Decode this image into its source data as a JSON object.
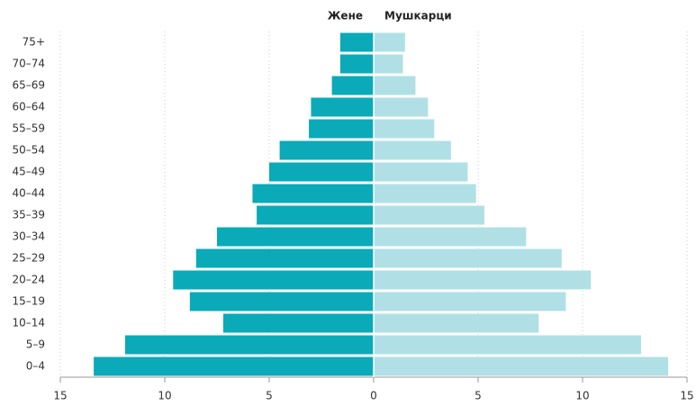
{
  "chart_data": {
    "type": "pyramid",
    "categories": [
      "75+",
      "70–74",
      "65–69",
      "60–64",
      "55–59",
      "50–54",
      "45–49",
      "40–44",
      "35–39",
      "30–34",
      "25–29",
      "20–24",
      "15–19",
      "10–14",
      "5–9",
      "0–4"
    ],
    "series": [
      {
        "name": "Жене",
        "color": "#0aaab9",
        "values": [
          -1.6,
          -1.6,
          -2.0,
          -3.0,
          -3.1,
          -4.5,
          -5.0,
          -5.8,
          -5.6,
          -7.5,
          -8.5,
          -9.6,
          -8.8,
          -7.2,
          -11.9,
          -13.4
        ]
      },
      {
        "name": "Мушкарци",
        "color": "#b0e0e6",
        "values": [
          1.5,
          1.4,
          2.0,
          2.6,
          2.9,
          3.7,
          4.5,
          4.9,
          5.3,
          7.3,
          9.0,
          10.4,
          9.2,
          7.9,
          12.8,
          14.1
        ]
      }
    ],
    "xlim": [
      -15,
      15
    ],
    "xticks": [
      {
        "value": -15,
        "label": "15"
      },
      {
        "value": -10,
        "label": "10"
      },
      {
        "value": -5,
        "label": "5"
      },
      0,
      5,
      10,
      15
    ],
    "grid": true
  }
}
